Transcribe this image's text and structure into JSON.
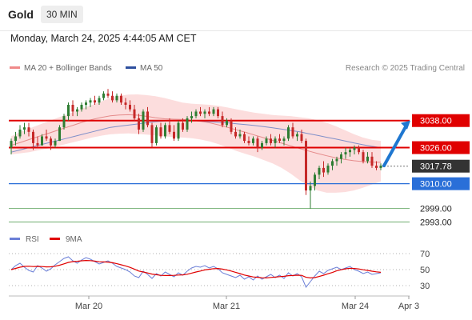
{
  "header": {
    "symbol": "Gold",
    "timeframe": "30 MIN"
  },
  "timestamp": "Monday, March 24, 2025 4:44:05 AM CET",
  "legend": [
    {
      "label": "MA 20 + Bollinger Bands",
      "color": "#f08a8a"
    },
    {
      "label": "MA 50",
      "color": "#2d4f9e"
    }
  ],
  "credit": "Research © 2025 Trading Central",
  "colors": {
    "up": "#2e7d32",
    "down": "#c62828",
    "resistance": "#e00000",
    "support": "#2a6fd8",
    "target": "#1f77d0"
  },
  "chart_data": {
    "type": "candlestick",
    "x_tick_labels": [
      "Mar 20",
      "Mar 21",
      "Mar 24",
      "Apr 3"
    ],
    "ylim": [
      2990,
      3056
    ],
    "candles": [
      [
        3026,
        3030,
        3023,
        3029
      ],
      [
        3029,
        3033,
        3027,
        3031
      ],
      [
        3031,
        3036,
        3030,
        3034
      ],
      [
        3034,
        3037,
        3032,
        3035
      ],
      [
        3035,
        3037,
        3031,
        3033
      ],
      [
        3033,
        3034,
        3025,
        3028
      ],
      [
        3028,
        3031,
        3026,
        3027
      ],
      [
        3027,
        3032,
        3027,
        3031
      ],
      [
        3031,
        3034,
        3029,
        3030
      ],
      [
        3030,
        3031,
        3025,
        3027
      ],
      [
        3027,
        3030,
        3026,
        3029
      ],
      [
        3029,
        3036,
        3029,
        3035
      ],
      [
        3035,
        3041,
        3034,
        3040
      ],
      [
        3040,
        3046,
        3038,
        3045
      ],
      [
        3045,
        3047,
        3040,
        3042
      ],
      [
        3042,
        3044,
        3040,
        3043
      ],
      [
        3043,
        3046,
        3042,
        3045
      ],
      [
        3045,
        3047,
        3043,
        3046
      ],
      [
        3046,
        3048,
        3044,
        3047
      ],
      [
        3047,
        3049,
        3045,
        3046
      ],
      [
        3046,
        3049,
        3045,
        3048
      ],
      [
        3048,
        3051,
        3047,
        3050
      ],
      [
        3050,
        3052,
        3048,
        3049
      ],
      [
        3049,
        3051,
        3046,
        3047
      ],
      [
        3047,
        3050,
        3046,
        3049
      ],
      [
        3049,
        3050,
        3045,
        3046
      ],
      [
        3046,
        3048,
        3043,
        3045
      ],
      [
        3045,
        3047,
        3042,
        3043
      ],
      [
        3043,
        3045,
        3038,
        3039
      ],
      [
        3039,
        3041,
        3032,
        3034
      ],
      [
        3034,
        3043,
        3033,
        3042
      ],
      [
        3042,
        3044,
        3035,
        3036
      ],
      [
        3036,
        3037,
        3026,
        3028
      ],
      [
        3028,
        3036,
        3027,
        3035
      ],
      [
        3035,
        3037,
        3030,
        3031
      ],
      [
        3031,
        3037,
        3030,
        3036
      ],
      [
        3036,
        3039,
        3032,
        3033
      ],
      [
        3033,
        3036,
        3029,
        3030
      ],
      [
        3030,
        3038,
        3029,
        3037
      ],
      [
        3037,
        3039,
        3033,
        3034
      ],
      [
        3034,
        3040,
        3033,
        3039
      ],
      [
        3039,
        3042,
        3037,
        3040
      ],
      [
        3040,
        3043,
        3039,
        3042
      ],
      [
        3042,
        3044,
        3040,
        3041
      ],
      [
        3041,
        3043,
        3039,
        3042
      ],
      [
        3042,
        3044,
        3040,
        3041
      ],
      [
        3041,
        3044,
        3040,
        3043
      ],
      [
        3043,
        3044,
        3039,
        3040
      ],
      [
        3040,
        3042,
        3035,
        3036
      ],
      [
        3036,
        3039,
        3035,
        3038
      ],
      [
        3038,
        3039,
        3032,
        3033
      ],
      [
        3033,
        3035,
        3030,
        3031
      ],
      [
        3031,
        3034,
        3030,
        3032
      ],
      [
        3032,
        3033,
        3028,
        3029
      ],
      [
        3029,
        3031,
        3027,
        3028
      ],
      [
        3028,
        3031,
        3027,
        3030
      ],
      [
        3030,
        3031,
        3024,
        3026
      ],
      [
        3026,
        3029,
        3025,
        3028
      ],
      [
        3028,
        3031,
        3027,
        3030
      ],
      [
        3030,
        3032,
        3027,
        3028
      ],
      [
        3028,
        3031,
        3026,
        3030
      ],
      [
        3030,
        3032,
        3028,
        3029
      ],
      [
        3029,
        3031,
        3027,
        3030
      ],
      [
        3030,
        3036,
        3029,
        3035
      ],
      [
        3035,
        3037,
        3030,
        3031
      ],
      [
        3031,
        3033,
        3029,
        3032
      ],
      [
        3032,
        3034,
        3028,
        3029
      ],
      [
        3029,
        3030,
        3005,
        3007
      ],
      [
        3007,
        3011,
        2999,
        3009
      ],
      [
        3009,
        3015,
        3007,
        3014
      ],
      [
        3014,
        3018,
        3012,
        3017
      ],
      [
        3017,
        3020,
        3013,
        3015
      ],
      [
        3015,
        3019,
        3014,
        3018
      ],
      [
        3018,
        3021,
        3016,
        3020
      ],
      [
        3020,
        3022,
        3018,
        3021
      ],
      [
        3021,
        3024,
        3019,
        3023
      ],
      [
        3023,
        3026,
        3021,
        3024
      ],
      [
        3024,
        3026,
        3022,
        3025
      ],
      [
        3025,
        3027,
        3023,
        3026
      ],
      [
        3026,
        3027,
        3023,
        3024
      ],
      [
        3024,
        3025,
        3019,
        3020
      ],
      [
        3020,
        3024,
        3019,
        3022
      ],
      [
        3022,
        3024,
        3017,
        3018
      ],
      [
        3018,
        3020,
        3016,
        3017
      ],
      [
        3017,
        3019,
        3016,
        3018
      ]
    ],
    "ma50": [
      3024,
      3025,
      3026,
      3027,
      3028,
      3029,
      3030,
      3031,
      3032,
      3033,
      3034,
      3035,
      3035.5,
      3036,
      3036.5,
      3037,
      3037.5,
      3037.8,
      3038,
      3038.1,
      3038,
      3037.8,
      3037.5,
      3037.2,
      3037,
      3036.6,
      3036.2,
      3035.8,
      3035.3,
      3034.8,
      3034.2,
      3033.6,
      3033,
      3032.2,
      3031.4,
      3030.6,
      3029.8,
      3029,
      3028.1,
      3027.3,
      3026.6,
      3026
    ],
    "ma20": [
      3027,
      3028.3,
      3029.6,
      3030.9,
      3032.2,
      3033.5,
      3034.8,
      3036.1,
      3037.4,
      3038.5,
      3039.4,
      3040.1,
      3040.5,
      3040.6,
      3040.4,
      3039.9,
      3039.3,
      3038.8,
      3038.6,
      3038.5,
      3038.2,
      3037.7,
      3037,
      3036.1,
      3035,
      3033.9,
      3032.8,
      3031.6,
      3030.4,
      3029.2,
      3028,
      3026.8,
      3025.6,
      3024.5,
      3023.4,
      3022.4,
      3021.5,
      3020.8,
      3020.2,
      3019.8,
      3019.6,
      3019.5
    ],
    "bb_upper": [
      3031,
      3033,
      3034.5,
      3036,
      3037.5,
      3039,
      3040.5,
      3042,
      3043.5,
      3045,
      3046.5,
      3048,
      3049,
      3049.5,
      3049.6,
      3049.3,
      3048.8,
      3048,
      3047,
      3046,
      3045.5,
      3045.3,
      3045,
      3044.5,
      3043.8,
      3043,
      3042.2,
      3041.5,
      3041,
      3040.5,
      3040.2,
      3040,
      3039.5,
      3039,
      3038.2,
      3037,
      3035.5,
      3033.8,
      3032,
      3030.5,
      3029.5,
      3029
    ],
    "bb_lower": [
      3023,
      3023.5,
      3024,
      3024.8,
      3025.6,
      3026.5,
      3027.5,
      3028.5,
      3029.5,
      3030.5,
      3031.3,
      3031.9,
      3032.2,
      3032.3,
      3032.1,
      3031.8,
      3031.4,
      3031,
      3030.7,
      3030.5,
      3030.2,
      3029.6,
      3028.8,
      3027.5,
      3026,
      3024.5,
      3023.2,
      3022,
      3020.5,
      3019,
      3017,
      3014.5,
      3011.5,
      3009,
      3007,
      3006,
      3006,
      3006.3,
      3007,
      3008.2,
      3009.6,
      3011
    ],
    "levels": [
      {
        "value": 3038.0,
        "label": "3038.00",
        "kind": "resistance"
      },
      {
        "value": 3026.0,
        "label": "3026.00",
        "kind": "resistance"
      },
      {
        "value": 3017.78,
        "label": "3017.78",
        "kind": "last_price"
      },
      {
        "value": 3010.0,
        "label": "3010.00",
        "kind": "pivot"
      },
      {
        "value": 2999.0,
        "label": "2999.00",
        "kind": "support"
      },
      {
        "value": 2993.0,
        "label": "2993.00",
        "kind": "support"
      }
    ],
    "target_arrow": {
      "from": 3018,
      "to": 3038
    },
    "rsi": {
      "legend": [
        {
          "label": "RSI",
          "color": "#6b7fd7"
        },
        {
          "label": "9MA",
          "color": "#e00000"
        }
      ],
      "ticks": [
        70,
        50,
        30
      ],
      "ylim": [
        25,
        75
      ],
      "values": [
        50,
        55,
        58,
        53,
        49,
        47,
        55,
        52,
        48,
        51,
        56,
        60,
        64,
        66,
        61,
        58,
        62,
        65,
        63,
        60,
        57,
        59,
        61,
        58,
        54,
        52,
        50,
        47,
        42,
        40,
        48,
        44,
        39,
        45,
        42,
        47,
        44,
        41,
        46,
        43,
        48,
        52,
        54,
        53,
        55,
        52,
        54,
        51,
        46,
        44,
        42,
        40,
        43,
        38,
        41,
        37,
        42,
        38,
        41,
        44,
        40,
        43,
        39,
        46,
        42,
        45,
        41,
        28,
        35,
        42,
        48,
        45,
        49,
        51,
        53,
        50,
        52,
        54,
        50,
        48,
        45,
        47,
        44,
        45,
        46
      ],
      "ma_values": [
        50,
        51.5,
        53,
        54,
        54.2,
        53.8,
        54,
        53.8,
        53.4,
        53.5,
        54.2,
        55.5,
        57.2,
        59,
        60,
        60.4,
        61,
        61.4,
        61.2,
        60.6,
        59.8,
        59.6,
        59.4,
        58.6,
        57.4,
        56,
        54.6,
        52.8,
        50.6,
        48.2,
        47,
        45.8,
        44.4,
        43.6,
        42.8,
        42.6,
        42.6,
        42.8,
        43.2,
        43.4,
        44.2,
        45.6,
        47,
        48.2,
        49.6,
        50.4,
        51.2,
        51.4,
        50.6,
        49.6,
        48.2,
        46.6,
        45,
        43.2,
        42,
        40.8,
        40.4,
        39.8,
        39.6,
        40.2,
        40.6,
        41.2,
        41.6,
        42.4,
        42.6,
        43,
        42.8,
        40.4,
        39.6,
        40,
        41.4,
        43,
        44.8,
        46.4,
        48.6,
        49.8,
        51,
        51.6,
        51.4,
        50.8,
        49.8,
        49,
        48,
        47.2,
        46.6
      ]
    }
  }
}
